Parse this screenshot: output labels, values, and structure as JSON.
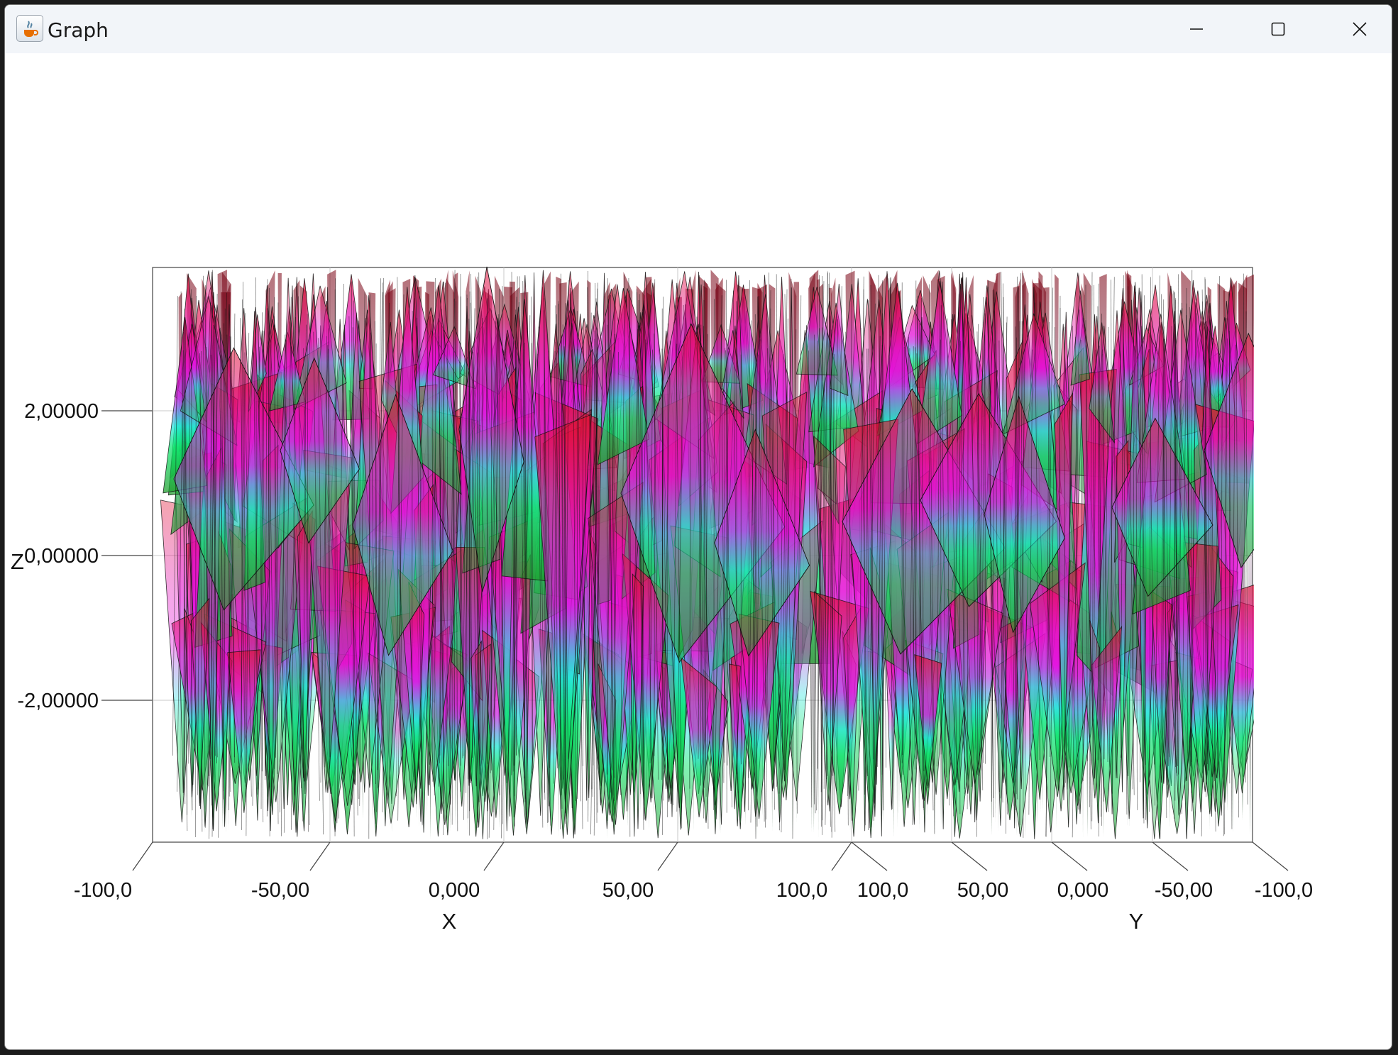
{
  "window": {
    "title": "Graph",
    "icon": "java-coffee-cup-icon",
    "controls": {
      "minimize": "minimize-icon",
      "maximize": "maximize-icon",
      "close": "close-icon"
    }
  },
  "chart_data": {
    "type": "surface-3d",
    "title": "",
    "xlabel": "X",
    "ylabel": "Y",
    "zlabel": "Z",
    "xlim": [
      -100,
      100
    ],
    "ylim": [
      100,
      -100
    ],
    "zticks": [
      "2,00000",
      "0,00000",
      "-2,00000"
    ],
    "xticks": [
      "-100,0",
      "-50,00",
      "0,000",
      "50,00",
      "100,0"
    ],
    "yticks": [
      "100,0",
      "50,00",
      "0,000",
      "-50,00",
      "-100,0"
    ],
    "grid": true,
    "colormap": [
      "#00ff66",
      "#22e6e6",
      "#ee11ee",
      "#ff1133"
    ]
  }
}
